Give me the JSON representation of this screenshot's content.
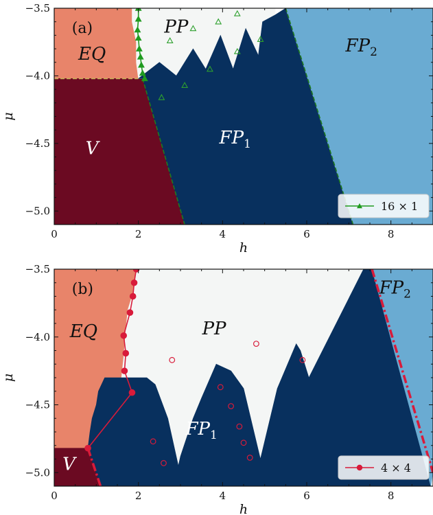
{
  "chart_data": [
    {
      "type": "heatmap",
      "panel_label": "(a)",
      "xlabel": "h",
      "ylabel": "μ",
      "xlim": [
        0,
        9
      ],
      "ylim": [
        -5.1,
        -3.5
      ],
      "xticks": [
        0,
        2,
        4,
        6,
        8
      ],
      "yticks": [
        -5.0,
        -4.5,
        -4.0,
        -3.5
      ],
      "xtick_labels": [
        "0",
        "2",
        "4",
        "6",
        "8"
      ],
      "ytick_labels": [
        "−5.0",
        "−4.5",
        "−4.0",
        "−3.5"
      ],
      "regions": [
        {
          "name": "EQ",
          "sub": "",
          "color": "#e8846a",
          "label_x": 0.9,
          "label_y": -3.88,
          "label_color": "#111111",
          "boundary": [
            [
              0,
              -3.5
            ],
            [
              1.85,
              -3.5
            ],
            [
              1.85,
              -3.6
            ],
            [
              1.95,
              -3.75
            ],
            [
              1.95,
              -3.9
            ],
            [
              2.0,
              -4.02
            ],
            [
              0,
              -4.02
            ]
          ]
        },
        {
          "name": "V",
          "sub": "",
          "color": "#6b0a22",
          "label_x": 0.9,
          "label_y": -4.58,
          "label_color": "#ffffff",
          "boundary": [
            [
              0,
              -4.02
            ],
            [
              2.1,
              -4.02
            ],
            [
              3.1,
              -5.1
            ],
            [
              0,
              -5.1
            ]
          ]
        },
        {
          "name": "PP",
          "sub": "",
          "color": "#f4f6f5",
          "label_x": 2.9,
          "label_y": -3.68,
          "label_color": "#111111",
          "boundary": [
            [
              1.85,
              -3.5
            ],
            [
              5.25,
              -3.5
            ],
            [
              5.25,
              -3.55
            ],
            [
              4.95,
              -3.6
            ],
            [
              4.85,
              -3.85
            ],
            [
              4.55,
              -3.65
            ],
            [
              4.25,
              -3.95
            ],
            [
              3.95,
              -3.7
            ],
            [
              3.6,
              -3.95
            ],
            [
              3.3,
              -3.8
            ],
            [
              2.9,
              -4.0
            ],
            [
              2.5,
              -3.9
            ],
            [
              2.1,
              -4.02
            ],
            [
              2.0,
              -4.02
            ],
            [
              1.95,
              -3.9
            ],
            [
              1.95,
              -3.75
            ],
            [
              1.85,
              -3.6
            ]
          ]
        },
        {
          "name": "FP",
          "sub": "1",
          "color": "#08305e",
          "label_x": 4.3,
          "label_y": -4.5,
          "label_color": "#ffffff",
          "boundary": [
            [
              2.0,
              -4.02
            ],
            [
              2.5,
              -3.9
            ],
            [
              2.9,
              -4.0
            ],
            [
              3.3,
              -3.8
            ],
            [
              3.6,
              -3.95
            ],
            [
              3.95,
              -3.7
            ],
            [
              4.25,
              -3.95
            ],
            [
              4.55,
              -3.65
            ],
            [
              4.85,
              -3.85
            ],
            [
              4.95,
              -3.6
            ],
            [
              5.25,
              -3.55
            ],
            [
              5.5,
              -3.5
            ],
            [
              7.1,
              -5.1
            ],
            [
              3.1,
              -5.1
            ],
            [
              2.1,
              -4.02
            ]
          ]
        },
        {
          "name": "FP",
          "sub": "2",
          "color": "#6aabd2",
          "label_x": 7.3,
          "label_y": -3.82,
          "label_color": "#111111",
          "boundary": [
            [
              5.5,
              -3.5
            ],
            [
              9,
              -3.5
            ],
            [
              9,
              -5.1
            ],
            [
              7.1,
              -5.1
            ]
          ]
        }
      ],
      "dashed_boundaries": [
        {
          "color": "#1f7a1f",
          "points": [
            [
              2.1,
              -4.02
            ],
            [
              3.1,
              -5.1
            ]
          ]
        },
        {
          "color": "#1f7a1f",
          "points": [
            [
              5.5,
              -3.5
            ],
            [
              7.1,
              -5.1
            ]
          ]
        },
        {
          "color": "#c9b25a",
          "points": [
            [
              0,
              -4.02
            ],
            [
              2.0,
              -4.02
            ]
          ]
        }
      ],
      "series": [
        {
          "name": "16 × 1",
          "color": "#1f9a1f",
          "marker": "triangle",
          "points": [
            [
              2.0,
              -3.5
            ],
            [
              2.0,
              -3.58
            ],
            [
              1.98,
              -3.66
            ],
            [
              2.0,
              -3.72
            ],
            [
              2.02,
              -3.8
            ],
            [
              2.05,
              -3.86
            ],
            [
              2.07,
              -3.92
            ],
            [
              2.1,
              -3.98
            ],
            [
              2.15,
              -4.02
            ]
          ]
        },
        {
          "name": "",
          "color": "#2ea02e",
          "marker": "triangle-open",
          "points": [
            [
              2.55,
              -4.16
            ],
            [
              2.75,
              -3.74
            ],
            [
              3.1,
              -4.07
            ],
            [
              3.3,
              -3.65
            ],
            [
              3.7,
              -3.95
            ],
            [
              3.9,
              -3.6
            ],
            [
              4.35,
              -3.82
            ],
            [
              4.35,
              -3.54
            ],
            [
              4.9,
              -3.73
            ]
          ]
        }
      ],
      "legend": {
        "placement": "bottom-right",
        "text": "16 × 1"
      },
      "grid": false
    },
    {
      "type": "heatmap",
      "panel_label": "(b)",
      "xlabel": "h",
      "ylabel": "μ",
      "xlim": [
        0,
        9
      ],
      "ylim": [
        -5.1,
        -3.5
      ],
      "xticks": [
        0,
        2,
        4,
        6,
        8
      ],
      "yticks": [
        -5.0,
        -4.5,
        -4.0,
        -3.5
      ],
      "xtick_labels": [
        "0",
        "2",
        "4",
        "6",
        "8"
      ],
      "ytick_labels": [
        "−5.0",
        "−4.5",
        "−4.0",
        "−3.5"
      ],
      "regions": [
        {
          "name": "EQ",
          "sub": "",
          "color": "#e8846a",
          "label_x": 0.7,
          "label_y": -4.0,
          "label_color": "#111111",
          "boundary": [
            [
              0,
              -3.5
            ],
            [
              1.95,
              -3.5
            ],
            [
              1.9,
              -3.65
            ],
            [
              1.75,
              -3.8
            ],
            [
              1.7,
              -3.95
            ],
            [
              1.65,
              -4.15
            ],
            [
              1.6,
              -4.3
            ],
            [
              1.2,
              -4.3
            ],
            [
              1.05,
              -4.4
            ],
            [
              1.0,
              -4.5
            ],
            [
              0.9,
              -4.6
            ],
            [
              0.85,
              -4.7
            ],
            [
              0.8,
              -4.82
            ],
            [
              0,
              -4.82
            ]
          ]
        },
        {
          "name": "V",
          "sub": "",
          "color": "#6b0a22",
          "label_x": 0.35,
          "label_y": -4.98,
          "label_color": "#ffffff",
          "boundary": [
            [
              0,
              -4.82
            ],
            [
              0.8,
              -4.82
            ],
            [
              1.1,
              -5.1
            ],
            [
              0,
              -5.1
            ]
          ]
        },
        {
          "name": "PP",
          "sub": "",
          "color": "#f4f6f5",
          "label_x": 3.8,
          "label_y": -3.98,
          "label_color": "#111111",
          "boundary": [
            [
              1.95,
              -3.5
            ],
            [
              7.35,
              -3.5
            ],
            [
              6.05,
              -4.3
            ],
            [
              5.85,
              -4.1
            ],
            [
              5.75,
              -4.05
            ],
            [
              5.3,
              -4.38
            ],
            [
              4.9,
              -4.9
            ],
            [
              4.5,
              -4.38
            ],
            [
              4.2,
              -4.25
            ],
            [
              3.85,
              -4.2
            ],
            [
              3.5,
              -4.45
            ],
            [
              3.3,
              -4.6
            ],
            [
              3.0,
              -4.88
            ],
            [
              2.95,
              -4.95
            ],
            [
              2.7,
              -4.6
            ],
            [
              2.4,
              -4.35
            ],
            [
              2.2,
              -4.3
            ],
            [
              1.6,
              -4.3
            ],
            [
              1.65,
              -4.15
            ],
            [
              1.7,
              -3.95
            ],
            [
              1.75,
              -3.8
            ],
            [
              1.9,
              -3.65
            ]
          ]
        },
        {
          "name": "FP",
          "sub": "1",
          "color": "#08305e",
          "label_x": 3.5,
          "label_y": -4.72,
          "label_color": "#ffffff",
          "boundary": [
            [
              0.8,
              -4.82
            ],
            [
              0.85,
              -4.7
            ],
            [
              0.9,
              -4.6
            ],
            [
              1.0,
              -4.5
            ],
            [
              1.05,
              -4.4
            ],
            [
              1.2,
              -4.3
            ],
            [
              2.2,
              -4.3
            ],
            [
              2.4,
              -4.35
            ],
            [
              2.7,
              -4.6
            ],
            [
              2.95,
              -4.95
            ],
            [
              3.0,
              -4.88
            ],
            [
              3.3,
              -4.6
            ],
            [
              3.5,
              -4.45
            ],
            [
              3.85,
              -4.2
            ],
            [
              4.2,
              -4.25
            ],
            [
              4.5,
              -4.38
            ],
            [
              4.9,
              -4.9
            ],
            [
              5.3,
              -4.38
            ],
            [
              5.75,
              -4.05
            ],
            [
              5.85,
              -4.1
            ],
            [
              6.05,
              -4.3
            ],
            [
              7.35,
              -3.5
            ],
            [
              7.55,
              -3.5
            ],
            [
              8.95,
              -5.1
            ],
            [
              1.1,
              -5.1
            ]
          ]
        },
        {
          "name": "FP",
          "sub": "2",
          "color": "#6aabd2",
          "label_x": 8.1,
          "label_y": -3.68,
          "label_color": "#111111",
          "boundary": [
            [
              7.55,
              -3.5
            ],
            [
              9,
              -3.5
            ],
            [
              9,
              -5.0
            ],
            [
              8.95,
              -5.1
            ]
          ]
        }
      ],
      "dashed_boundaries": [
        {
          "color": "#d81b3a",
          "points": [
            [
              7.55,
              -3.5
            ],
            [
              9.0,
              -5.0
            ]
          ]
        },
        {
          "color": "#d81b3a",
          "points": [
            [
              0.8,
              -4.82
            ],
            [
              1.1,
              -5.1
            ]
          ]
        }
      ],
      "series": [
        {
          "name": "4 × 4",
          "color": "#d81b3a",
          "marker": "circle",
          "points": [
            [
              1.95,
              -3.5
            ],
            [
              1.9,
              -3.6
            ],
            [
              1.87,
              -3.7
            ],
            [
              1.8,
              -3.82
            ],
            [
              1.65,
              -3.99
            ],
            [
              1.7,
              -4.12
            ],
            [
              1.67,
              -4.25
            ],
            [
              1.85,
              -4.41
            ],
            [
              0.8,
              -4.82
            ]
          ]
        },
        {
          "name": "",
          "color": "#d81b3a",
          "marker": "circle-open",
          "points": [
            [
              2.8,
              -4.17
            ],
            [
              4.8,
              -4.05
            ],
            [
              5.9,
              -4.17
            ],
            [
              3.95,
              -4.37
            ],
            [
              4.2,
              -4.51
            ],
            [
              4.4,
              -4.66
            ],
            [
              4.5,
              -4.78
            ],
            [
              4.65,
              -4.89
            ],
            [
              2.35,
              -4.77
            ],
            [
              2.6,
              -4.93
            ]
          ]
        }
      ],
      "legend": {
        "placement": "bottom-right",
        "text": "4 × 4"
      },
      "grid": false
    }
  ]
}
